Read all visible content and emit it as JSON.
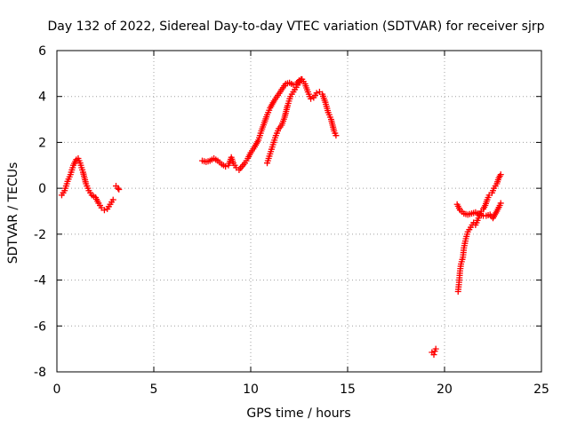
{
  "chart_data": {
    "type": "scatter",
    "title": "Day 132 of 2022, Sidereal Day-to-day VTEC variation (SDTVAR) for receiver sjrp",
    "xlabel": "GPS time / hours",
    "ylabel": "SDTVAR / TECUs",
    "xlim": [
      0,
      25
    ],
    "ylim": [
      -8,
      6
    ],
    "xticks": [
      "0",
      "5",
      "10",
      "15",
      "20",
      "25"
    ],
    "yticks": [
      "-8",
      "-6",
      "-4",
      "-2",
      "0",
      "2",
      "4",
      "6"
    ],
    "grid": true,
    "marker": "+",
    "color": "#ff0000",
    "segments": [
      [
        [
          0.25,
          -0.3
        ],
        [
          0.4,
          -0.1
        ],
        [
          0.55,
          0.3
        ],
        [
          0.7,
          0.6
        ],
        [
          0.85,
          1.0
        ],
        [
          1.0,
          1.25
        ],
        [
          1.1,
          1.3
        ],
        [
          1.2,
          1.1
        ],
        [
          1.35,
          0.7
        ],
        [
          1.5,
          0.2
        ],
        [
          1.65,
          -0.1
        ],
        [
          1.8,
          -0.3
        ],
        [
          2.0,
          -0.4
        ],
        [
          2.15,
          -0.65
        ],
        [
          2.3,
          -0.85
        ],
        [
          2.45,
          -0.95
        ],
        [
          2.6,
          -0.9
        ],
        [
          2.75,
          -0.7
        ],
        [
          2.9,
          -0.5
        ]
      ],
      [
        [
          3.05,
          0.1
        ],
        [
          3.15,
          0.0
        ],
        [
          3.2,
          -0.05
        ]
      ],
      [
        [
          7.5,
          1.2
        ],
        [
          7.7,
          1.15
        ],
        [
          7.9,
          1.2
        ],
        [
          8.1,
          1.3
        ],
        [
          8.3,
          1.2
        ],
        [
          8.5,
          1.05
        ],
        [
          8.7,
          0.95
        ],
        [
          8.85,
          1.0
        ],
        [
          9.0,
          1.35
        ],
        [
          9.1,
          1.1
        ],
        [
          9.25,
          0.9
        ],
        [
          9.4,
          0.8
        ],
        [
          9.55,
          0.95
        ],
        [
          9.7,
          1.1
        ],
        [
          9.85,
          1.3
        ],
        [
          10.0,
          1.55
        ],
        [
          10.2,
          1.8
        ],
        [
          10.4,
          2.1
        ],
        [
          10.55,
          2.5
        ],
        [
          10.7,
          2.85
        ],
        [
          10.85,
          3.2
        ],
        [
          11.0,
          3.5
        ],
        [
          11.2,
          3.8
        ],
        [
          11.4,
          4.05
        ],
        [
          11.6,
          4.3
        ],
        [
          11.8,
          4.55
        ],
        [
          12.0,
          4.6
        ],
        [
          12.2,
          4.5
        ],
        [
          12.35,
          4.55
        ],
        [
          12.5,
          4.7
        ],
        [
          12.65,
          4.75
        ],
        [
          12.8,
          4.55
        ],
        [
          12.95,
          4.2
        ],
        [
          13.1,
          3.9
        ],
        [
          13.25,
          3.95
        ],
        [
          13.4,
          4.15
        ],
        [
          13.55,
          4.2
        ],
        [
          13.7,
          4.1
        ],
        [
          13.85,
          3.75
        ],
        [
          14.0,
          3.3
        ],
        [
          14.15,
          3.0
        ],
        [
          14.3,
          2.5
        ],
        [
          14.4,
          2.3
        ]
      ],
      [
        [
          10.85,
          1.1
        ],
        [
          11.0,
          1.5
        ],
        [
          11.15,
          1.9
        ],
        [
          11.3,
          2.3
        ],
        [
          11.45,
          2.6
        ],
        [
          11.6,
          2.75
        ],
        [
          11.75,
          3.1
        ],
        [
          11.9,
          3.6
        ],
        [
          12.05,
          4.0
        ],
        [
          12.2,
          4.2
        ],
        [
          12.35,
          4.4
        ],
        [
          12.5,
          4.6
        ],
        [
          12.6,
          4.75
        ]
      ],
      [
        [
          19.35,
          -7.15
        ],
        [
          19.45,
          -7.25
        ],
        [
          19.5,
          -7.1
        ],
        [
          19.55,
          -7.0
        ]
      ],
      [
        [
          20.65,
          -0.7
        ],
        [
          20.8,
          -0.95
        ],
        [
          21.0,
          -1.1
        ],
        [
          21.2,
          -1.15
        ],
        [
          21.4,
          -1.1
        ],
        [
          21.6,
          -1.05
        ],
        [
          21.8,
          -1.15
        ],
        [
          22.0,
          -1.2
        ],
        [
          22.15,
          -1.2
        ],
        [
          22.35,
          -1.15
        ],
        [
          22.5,
          -1.3
        ],
        [
          22.6,
          -1.15
        ],
        [
          22.7,
          -1.0
        ],
        [
          22.85,
          -0.75
        ],
        [
          22.9,
          -0.65
        ]
      ],
      [
        [
          20.7,
          -4.5
        ],
        [
          20.75,
          -4.1
        ],
        [
          20.8,
          -3.6
        ],
        [
          20.85,
          -3.3
        ],
        [
          20.95,
          -3.0
        ],
        [
          21.0,
          -2.6
        ],
        [
          21.1,
          -2.2
        ],
        [
          21.2,
          -1.9
        ],
        [
          21.35,
          -1.7
        ],
        [
          21.5,
          -1.5
        ],
        [
          21.6,
          -1.6
        ],
        [
          21.7,
          -1.4
        ],
        [
          21.8,
          -1.2
        ],
        [
          21.9,
          -1.0
        ],
        [
          22.0,
          -0.9
        ],
        [
          22.1,
          -0.75
        ],
        [
          22.2,
          -0.5
        ],
        [
          22.3,
          -0.3
        ],
        [
          22.45,
          -0.2
        ],
        [
          22.55,
          0.0
        ],
        [
          22.7,
          0.2
        ],
        [
          22.8,
          0.45
        ],
        [
          22.9,
          0.6
        ]
      ]
    ]
  }
}
